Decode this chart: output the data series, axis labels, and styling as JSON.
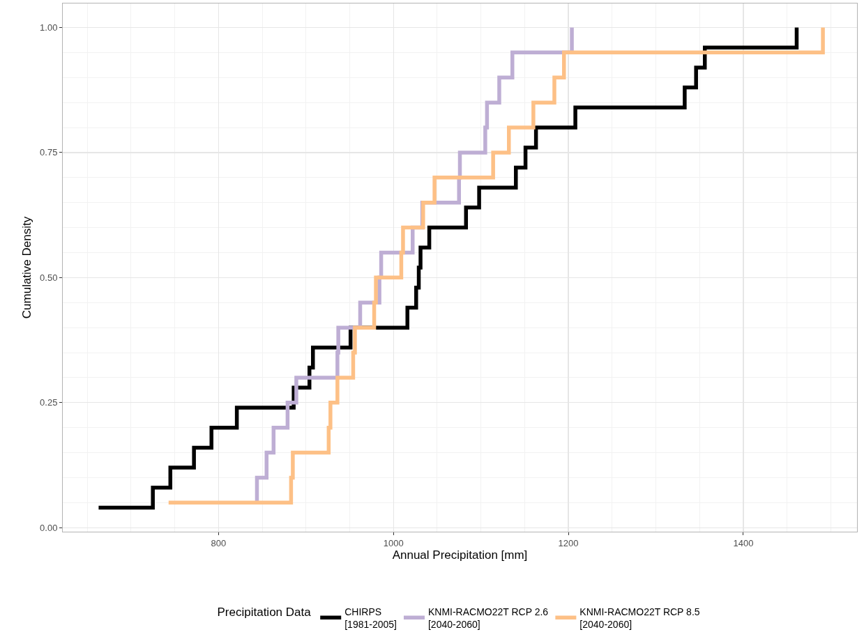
{
  "chart_data": {
    "type": "step",
    "xlabel": "Annual Precipitation [mm]",
    "ylabel": "Cumulative Density",
    "legend_title": "Precipitation Data",
    "legend": "bottom",
    "grid": true,
    "line_style": "solid",
    "marker": "none",
    "xlim": [
      622,
      1530
    ],
    "xticks": [
      800,
      1000,
      1200,
      1400
    ],
    "ylim": [
      -0.008,
      1.048
    ],
    "yticks": [
      {
        "value": 0,
        "label": "0.00"
      },
      {
        "value": 0.25,
        "label": "0.25"
      },
      {
        "value": 0.5,
        "label": "0.50"
      },
      {
        "value": 0.75,
        "label": "0.75"
      },
      {
        "value": 1,
        "label": "1.00"
      }
    ],
    "series": [
      {
        "name": "CHIRPS\n[1981-2005]",
        "color": "#000000",
        "x": [
          663,
          725,
          745,
          772,
          792,
          821,
          886,
          904,
          908,
          951,
          1016,
          1026,
          1029,
          1031,
          1041,
          1083,
          1098,
          1140,
          1151,
          1163,
          1208,
          1333,
          1346,
          1356,
          1461
        ],
        "values": [
          0.04,
          0.08,
          0.12,
          0.16,
          0.2,
          0.24,
          0.28,
          0.32,
          0.36,
          0.4,
          0.44,
          0.48,
          0.52,
          0.56,
          0.6,
          0.64,
          0.68,
          0.72,
          0.76,
          0.8,
          0.84,
          0.88,
          0.92,
          0.96,
          1.0
        ]
      },
      {
        "name": "KNMI-RACMO22T RCP 2.6\n[2040-2060]",
        "color": "#beaed4",
        "x": [
          843,
          844,
          855,
          863,
          879,
          889,
          936,
          937,
          962,
          984,
          986,
          1022,
          1033,
          1075,
          1076,
          1105,
          1107,
          1121,
          1136,
          1204
        ],
        "values": [
          0.05,
          0.1,
          0.15,
          0.2,
          0.25,
          0.3,
          0.35,
          0.4,
          0.45,
          0.5,
          0.55,
          0.6,
          0.65,
          0.7,
          0.75,
          0.8,
          0.85,
          0.9,
          0.95,
          1.0
        ]
      },
      {
        "name": "KNMI-RACMO22T RCP 8.5\n[2040-2060]",
        "color": "#fdc086",
        "x": [
          743,
          883,
          885,
          926,
          928,
          936,
          954,
          956,
          978,
          980,
          1009,
          1011,
          1034,
          1047,
          1114,
          1132,
          1160,
          1184,
          1195,
          1491
        ],
        "values": [
          0.05,
          0.1,
          0.15,
          0.2,
          0.25,
          0.3,
          0.35,
          0.4,
          0.45,
          0.5,
          0.55,
          0.6,
          0.65,
          0.7,
          0.75,
          0.8,
          0.85,
          0.9,
          0.95,
          1.0
        ]
      }
    ]
  }
}
